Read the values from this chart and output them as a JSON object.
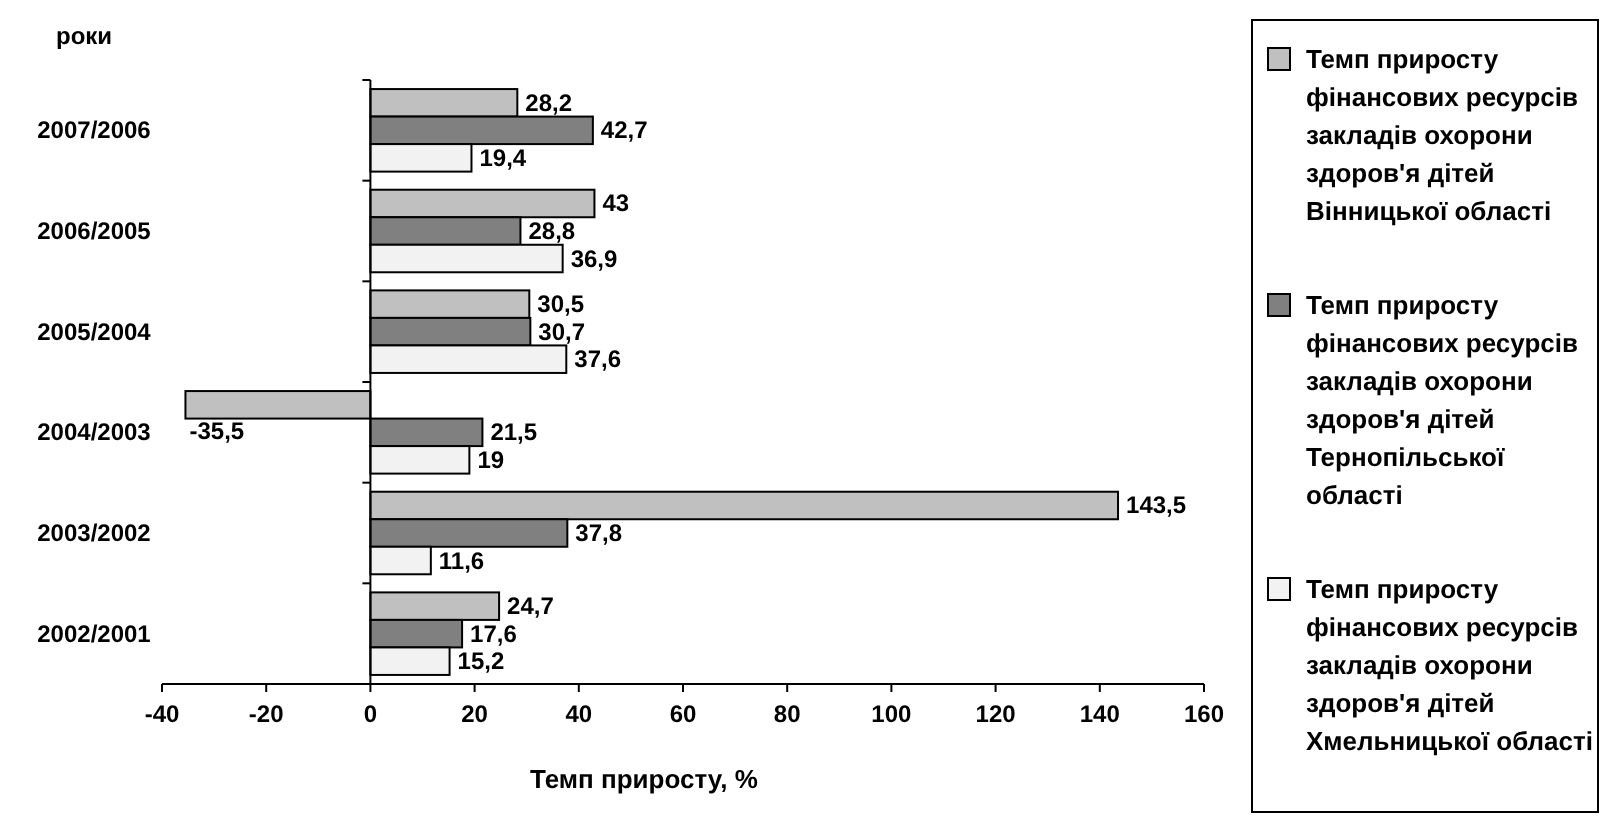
{
  "chart_data": {
    "type": "bar",
    "orientation": "horizontal",
    "xlabel": "Темп приросту, %",
    "ylabel": "роки",
    "categories": [
      "2007/2006",
      "2006/2005",
      "2005/2004",
      "2004/2003",
      "2003/2002",
      "2002/2001"
    ],
    "series": [
      {
        "name": "Темп приросту фінансових ресурсів закладів охорони здоров'я дітей Вінницької області",
        "color": "#c0c0c0",
        "values": [
          28.2,
          43,
          30.5,
          -35.5,
          143.5,
          24.7
        ],
        "value_labels": [
          "28,2",
          "43",
          "30,5",
          "-35,5",
          "143,5",
          "24,7"
        ]
      },
      {
        "name": "Темп приросту фінансових ресурсів закладів охорони здоров'я дітей Тернопільської області",
        "color": "#808080",
        "values": [
          42.7,
          28.8,
          30.7,
          21.5,
          37.8,
          17.6
        ],
        "value_labels": [
          "42,7",
          "28,8",
          "30,7",
          "21,5",
          "37,8",
          "17,6"
        ]
      },
      {
        "name": "Темп приросту фінансових ресурсів закладів охорони здоров'я дітей Хмельницької області",
        "color": "#f2f2f2",
        "values": [
          19.4,
          36.9,
          37.6,
          19,
          11.6,
          15.2
        ],
        "value_labels": [
          "19,4",
          "36,9",
          "37,6",
          "19",
          "11,6",
          "15,2"
        ]
      }
    ],
    "xlim": [
      -40,
      160
    ],
    "xticks": [
      -40,
      -20,
      0,
      20,
      40,
      60,
      80,
      100,
      120,
      140,
      160
    ],
    "legend": "right"
  }
}
